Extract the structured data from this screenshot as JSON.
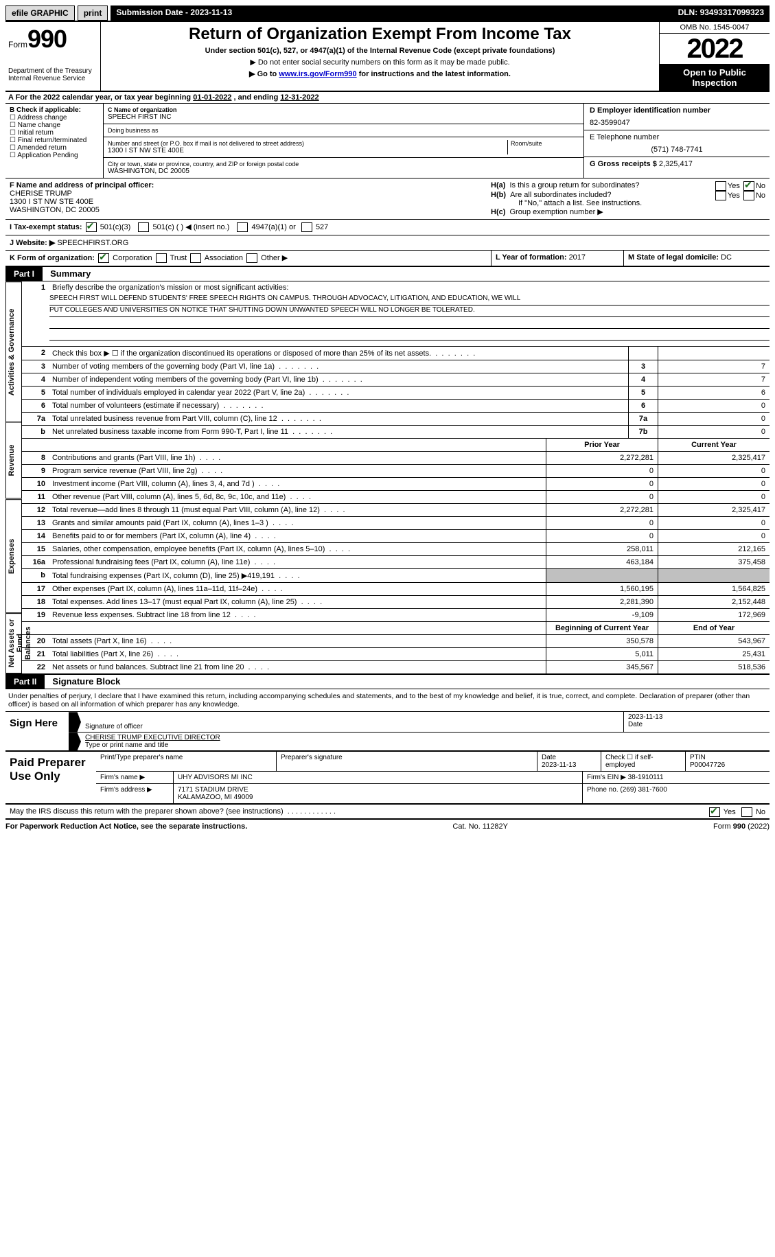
{
  "topbar": {
    "efile": "efile GRAPHIC",
    "print": "print",
    "submission_label": "Submission Date - ",
    "submission_date": "2023-11-13",
    "dln_label": "DLN: ",
    "dln": "93493317099323"
  },
  "header": {
    "form_word": "Form",
    "form_number": "990",
    "dept": "Department of the Treasury",
    "irs": "Internal Revenue Service",
    "title": "Return of Organization Exempt From Income Tax",
    "subtitle": "Under section 501(c), 527, or 4947(a)(1) of the Internal Revenue Code (except private foundations)",
    "note1": "▶ Do not enter social security numbers on this form as it may be made public.",
    "note2_pre": "▶ Go to ",
    "note2_link": "www.irs.gov/Form990",
    "note2_post": " for instructions and the latest information.",
    "omb": "OMB No. 1545-0047",
    "year": "2022",
    "open": "Open to Public Inspection"
  },
  "line_a": {
    "pre": "A For the 2022 calendar year, or tax year beginning ",
    "begin": "01-01-2022",
    "mid": "  , and ending ",
    "end": "12-31-2022"
  },
  "col_b": {
    "label": "B Check if applicable:",
    "opts": [
      "Address change",
      "Name change",
      "Initial return",
      "Final return/terminated",
      "Amended return",
      "Application Pending"
    ]
  },
  "col_c": {
    "name_label": "C Name of organization",
    "name": "SPEECH FIRST INC",
    "dba_label": "Doing business as",
    "addr_label": "Number and street (or P.O. box if mail is not delivered to street address)",
    "room_label": "Room/suite",
    "addr": "1300 I ST NW STE 400E",
    "city_label": "City or town, state or province, country, and ZIP or foreign postal code",
    "city": "WASHINGTON, DC  20005"
  },
  "col_de": {
    "d_label": "D Employer identification number",
    "ein": "82-3599047",
    "e_label": "E Telephone number",
    "phone": "(571) 748-7741",
    "g_label": "G Gross receipts $ ",
    "gross": "2,325,417"
  },
  "block_f": {
    "f_label": "F Name and address of principal officer:",
    "name": "CHERISE TRUMP",
    "addr1": "1300 I ST NW STE 400E",
    "addr2": "WASHINGTON, DC  20005"
  },
  "block_h": {
    "ha_label": "H(a)  Is this a group return for subordinates?",
    "hb_label": "H(b)  Are all subordinates included?",
    "hb_note": "If \"No,\" attach a list. See instructions.",
    "hc_label": "H(c)  Group exemption number ▶",
    "yes": "Yes",
    "no": "No"
  },
  "row_i": {
    "label": "I  Tax-exempt status:",
    "o1": "501(c)(3)",
    "o2": "501(c) (   ) ◀ (insert no.)",
    "o3": "4947(a)(1) or",
    "o4": "527"
  },
  "row_j": {
    "label": "J  Website: ▶",
    "val": "SPEECHFIRST.ORG"
  },
  "row_k": {
    "label": "K Form of organization:",
    "o1": "Corporation",
    "o2": "Trust",
    "o3": "Association",
    "o4": "Other ▶"
  },
  "row_l": {
    "label": "L Year of formation: ",
    "val": "2017"
  },
  "row_m": {
    "label": "M State of legal domicile: ",
    "val": "DC"
  },
  "part1": {
    "hdr": "Part I",
    "title": "Summary"
  },
  "sidetabs": {
    "gov": "Activities & Governance",
    "rev": "Revenue",
    "exp": "Expenses",
    "net": "Net Assets or Fund Balances"
  },
  "mission": {
    "num": "1",
    "label": "Briefly describe the organization's mission or most significant activities:",
    "l1": "SPEECH FIRST WILL DEFEND STUDENTS' FREE SPEECH RIGHTS ON CAMPUS. THROUGH ADVOCACY, LITIGATION, AND EDUCATION, WE WILL",
    "l2": "PUT COLLEGES AND UNIVERSITIES ON NOTICE THAT SHUTTING DOWN UNWANTED SPEECH WILL NO LONGER BE TOLERATED."
  },
  "lines_gov": [
    {
      "n": "2",
      "t": "Check this box ▶ ☐ if the organization discontinued its operations or disposed of more than 25% of its net assets.",
      "box": "",
      "v": ""
    },
    {
      "n": "3",
      "t": "Number of voting members of the governing body (Part VI, line 1a)",
      "box": "3",
      "v": "7"
    },
    {
      "n": "4",
      "t": "Number of independent voting members of the governing body (Part VI, line 1b)",
      "box": "4",
      "v": "7"
    },
    {
      "n": "5",
      "t": "Total number of individuals employed in calendar year 2022 (Part V, line 2a)",
      "box": "5",
      "v": "6"
    },
    {
      "n": "6",
      "t": "Total number of volunteers (estimate if necessary)",
      "box": "6",
      "v": "0"
    },
    {
      "n": "7a",
      "t": "Total unrelated business revenue from Part VIII, column (C), line 12",
      "box": "7a",
      "v": "0"
    },
    {
      "n": "b",
      "t": "Net unrelated business taxable income from Form 990-T, Part I, line 11",
      "box": "7b",
      "v": "0"
    }
  ],
  "col_hdrs": {
    "prior": "Prior Year",
    "current": "Current Year",
    "begin": "Beginning of Current Year",
    "end": "End of Year"
  },
  "lines_rev": [
    {
      "n": "8",
      "t": "Contributions and grants (Part VIII, line 1h)",
      "p": "2,272,281",
      "c": "2,325,417"
    },
    {
      "n": "9",
      "t": "Program service revenue (Part VIII, line 2g)",
      "p": "0",
      "c": "0"
    },
    {
      "n": "10",
      "t": "Investment income (Part VIII, column (A), lines 3, 4, and 7d )",
      "p": "0",
      "c": "0"
    },
    {
      "n": "11",
      "t": "Other revenue (Part VIII, column (A), lines 5, 6d, 8c, 9c, 10c, and 11e)",
      "p": "0",
      "c": "0"
    },
    {
      "n": "12",
      "t": "Total revenue—add lines 8 through 11 (must equal Part VIII, column (A), line 12)",
      "p": "2,272,281",
      "c": "2,325,417"
    }
  ],
  "lines_exp": [
    {
      "n": "13",
      "t": "Grants and similar amounts paid (Part IX, column (A), lines 1–3 )",
      "p": "0",
      "c": "0"
    },
    {
      "n": "14",
      "t": "Benefits paid to or for members (Part IX, column (A), line 4)",
      "p": "0",
      "c": "0"
    },
    {
      "n": "15",
      "t": "Salaries, other compensation, employee benefits (Part IX, column (A), lines 5–10)",
      "p": "258,011",
      "c": "212,165"
    },
    {
      "n": "16a",
      "t": "Professional fundraising fees (Part IX, column (A), line 11e)",
      "p": "463,184",
      "c": "375,458"
    },
    {
      "n": "b",
      "t": "Total fundraising expenses (Part IX, column (D), line 25) ▶419,191",
      "p": "",
      "c": "",
      "shade": true
    },
    {
      "n": "17",
      "t": "Other expenses (Part IX, column (A), lines 11a–11d, 11f–24e)",
      "p": "1,560,195",
      "c": "1,564,825"
    },
    {
      "n": "18",
      "t": "Total expenses. Add lines 13–17 (must equal Part IX, column (A), line 25)",
      "p": "2,281,390",
      "c": "2,152,448"
    },
    {
      "n": "19",
      "t": "Revenue less expenses. Subtract line 18 from line 12",
      "p": "-9,109",
      "c": "172,969"
    }
  ],
  "lines_net": [
    {
      "n": "20",
      "t": "Total assets (Part X, line 16)",
      "p": "350,578",
      "c": "543,967"
    },
    {
      "n": "21",
      "t": "Total liabilities (Part X, line 26)",
      "p": "5,011",
      "c": "25,431"
    },
    {
      "n": "22",
      "t": "Net assets or fund balances. Subtract line 21 from line 20",
      "p": "345,567",
      "c": "518,536"
    }
  ],
  "part2": {
    "hdr": "Part II",
    "title": "Signature Block"
  },
  "sig": {
    "perjury": "Under penalties of perjury, I declare that I have examined this return, including accompanying schedules and statements, and to the best of my knowledge and belief, it is true, correct, and complete. Declaration of preparer (other than officer) is based on all information of which preparer has any knowledge.",
    "sign_here": "Sign Here",
    "sig_of_officer": "Signature of officer",
    "date_label": "Date",
    "date": "2023-11-13",
    "type_name": "CHERISE TRUMP  EXECUTIVE DIRECTOR",
    "type_label": "Type or print name and title"
  },
  "prep": {
    "hdr": "Paid Preparer Use Only",
    "print_label": "Print/Type preparer's name",
    "sig_label": "Preparer's signature",
    "date_label": "Date",
    "date": "2023-11-13",
    "check_label": "Check ☐ if self-employed",
    "ptin_label": "PTIN",
    "ptin": "P00047726",
    "firm_name_label": "Firm's name   ▶",
    "firm_name": "UHY ADVISORS MI INC",
    "firm_ein_label": "Firm's EIN ▶",
    "firm_ein": "38-1910111",
    "firm_addr_label": "Firm's address ▶",
    "firm_addr1": "7171 STADIUM DRIVE",
    "firm_addr2": "KALAMAZOO, MI  49009",
    "phone_label": "Phone no.",
    "phone": "(269) 381-7600"
  },
  "discuss": {
    "text": "May the IRS discuss this return with the preparer shown above? (see instructions)",
    "yes": "Yes",
    "no": "No"
  },
  "footer": {
    "left": "For Paperwork Reduction Act Notice, see the separate instructions.",
    "mid": "Cat. No. 11282Y",
    "right": "Form 990 (2022)"
  }
}
